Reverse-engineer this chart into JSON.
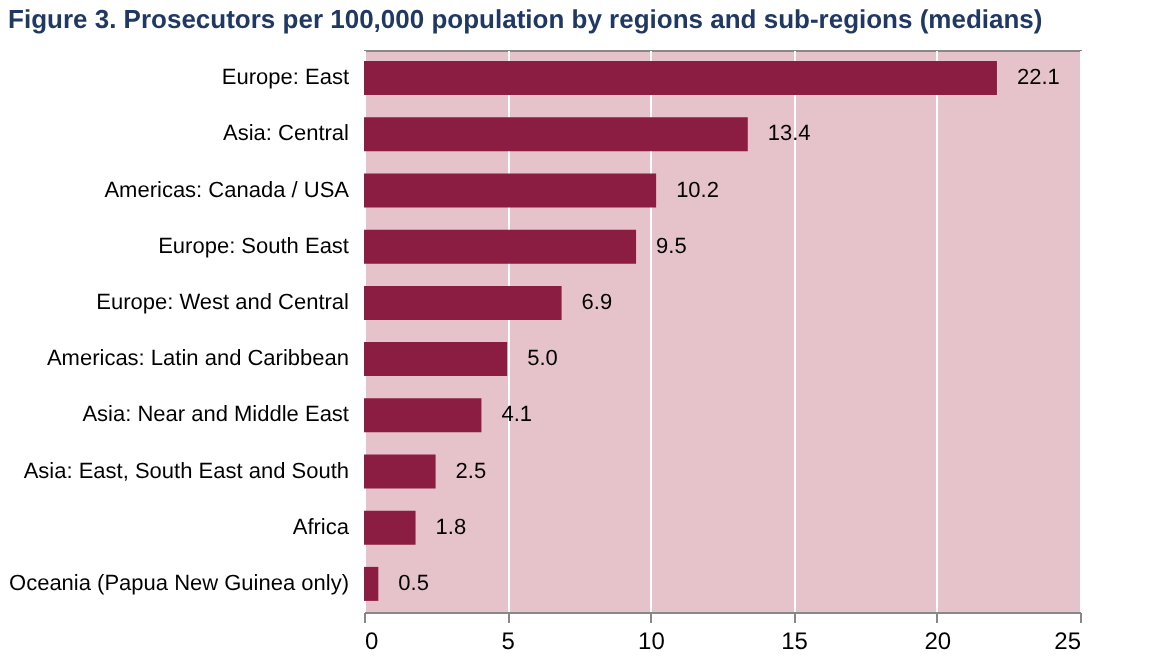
{
  "chart_data": {
    "type": "bar",
    "orientation": "horizontal",
    "title": "Figure 3. Prosecutors per 100,000 population by regions and sub-regions (medians)",
    "categories": [
      "Europe: East",
      "Asia: Central",
      "Americas: Canada / USA",
      "Europe: South East",
      "Europe: West and Central",
      "Americas: Latin and Caribbean",
      "Asia: Near and Middle East",
      "Asia: East, South East and South",
      "Africa",
      "Oceania (Papua New Guinea only)"
    ],
    "values": [
      22.1,
      13.4,
      10.2,
      9.5,
      6.9,
      5.0,
      4.1,
      2.5,
      1.8,
      0.5
    ],
    "value_labels": [
      "22.1",
      "13.4",
      "10.2",
      "9.5",
      "6.9",
      "5.0",
      "4.1",
      "2.5",
      "1.8",
      "0.5"
    ],
    "color": "#8b1c42",
    "xlim": [
      0,
      25
    ],
    "xticks": [
      0,
      5,
      10,
      15,
      20,
      25
    ],
    "grid": "x"
  }
}
